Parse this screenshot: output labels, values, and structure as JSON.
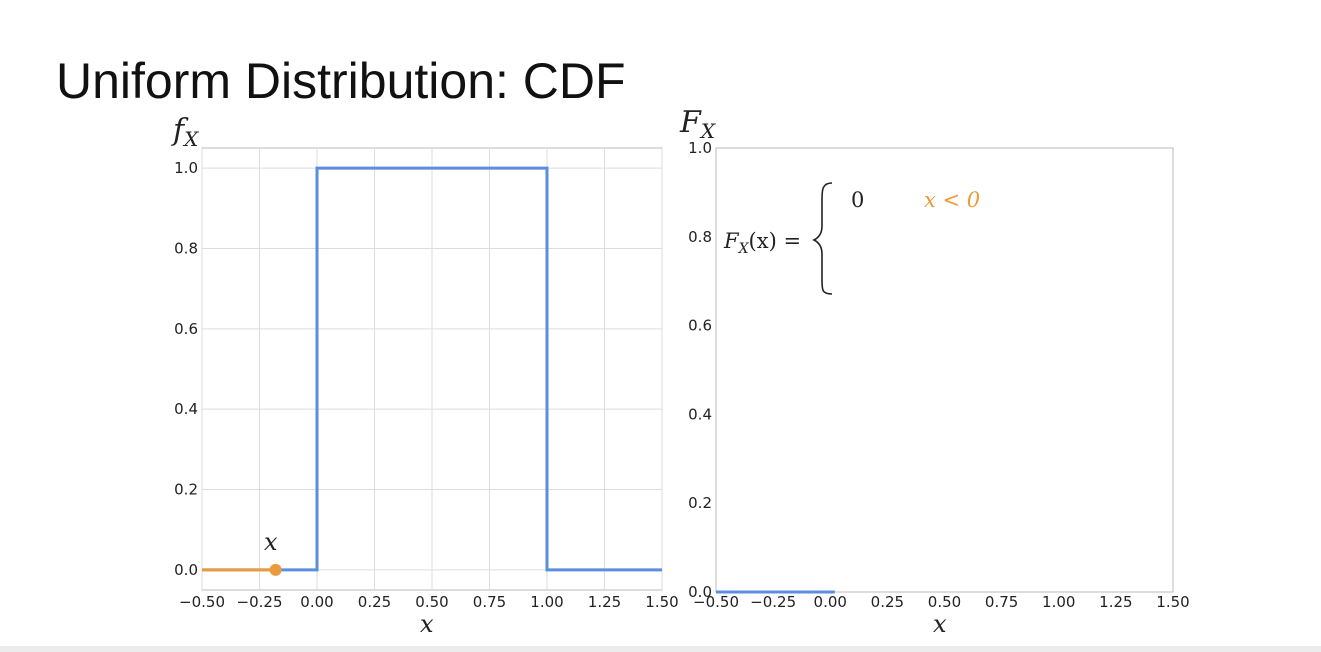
{
  "title": "Uniform Distribution: CDF",
  "colors": {
    "blue": "#5b8ee0",
    "orange": "#ec9a3c",
    "grid": "#dddddd",
    "frame": "#bbbbbb"
  },
  "chart_data": [
    {
      "type": "line",
      "ylabel_main": "f",
      "ylabel_sub": "X",
      "xlabel": "x",
      "xlim": [
        -0.5,
        1.5
      ],
      "ylim": [
        -0.05,
        1.05
      ],
      "grid": true,
      "xticks": [
        "−0.50",
        "−0.25",
        "0.00",
        "0.25",
        "0.50",
        "0.75",
        "1.00",
        "1.25",
        "1.50"
      ],
      "xtick_values": [
        -0.5,
        -0.25,
        0,
        0.25,
        0.5,
        0.75,
        1,
        1.25,
        1.5
      ],
      "yticks": [
        "0.0",
        "0.2",
        "0.4",
        "0.6",
        "0.8",
        "1.0"
      ],
      "ytick_values": [
        0,
        0.2,
        0.4,
        0.6,
        0.8,
        1.0
      ],
      "series": [
        {
          "color": "#5b8ee0",
          "x": [
            -0.5,
            0,
            0,
            1,
            1,
            1.5
          ],
          "y": [
            0,
            0,
            1,
            1,
            0,
            0
          ]
        },
        {
          "color": "#ec9a3c",
          "x": [
            -0.5,
            -0.18
          ],
          "y": [
            0,
            0
          ]
        }
      ],
      "marker": {
        "x": -0.18,
        "y": 0,
        "label": "x",
        "color": "#ec9a3c"
      }
    },
    {
      "type": "line",
      "ylabel_main": "F",
      "ylabel_sub": "X",
      "xlabel": "x",
      "xlim": [
        -0.5,
        1.5
      ],
      "ylim": [
        0,
        1.0
      ],
      "grid": false,
      "xticks": [
        "−0.50",
        "−0.25",
        "0.00",
        "0.25",
        "0.50",
        "0.75",
        "1.00",
        "1.25",
        "1.50"
      ],
      "xtick_values": [
        -0.5,
        -0.25,
        0,
        0.25,
        0.5,
        0.75,
        1,
        1.25,
        1.5
      ],
      "yticks": [
        "0.0",
        "0.2",
        "0.4",
        "0.6",
        "0.8",
        "1.0"
      ],
      "ytick_values": [
        0,
        0.2,
        0.4,
        0.6,
        0.8,
        1.0
      ],
      "series": [
        {
          "color": "#5b8ee0",
          "x": [
            -0.5,
            0.02
          ],
          "y": [
            0,
            0
          ]
        }
      ],
      "annotation": {
        "lhs_main": "F",
        "lhs_sub": "X",
        "lhs_rest": "(x) =",
        "case_value": "0",
        "case_condition": "x < 0"
      }
    }
  ]
}
